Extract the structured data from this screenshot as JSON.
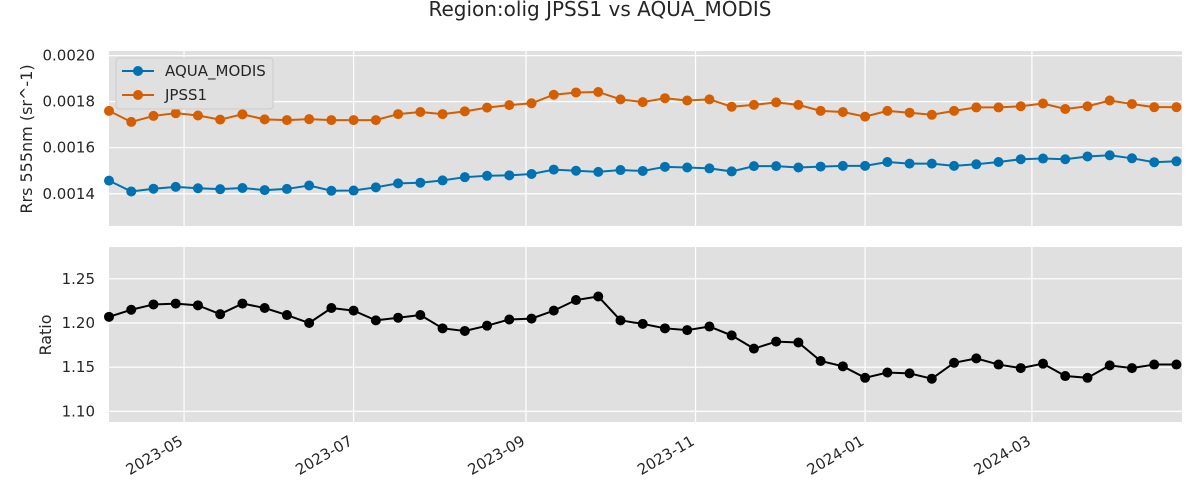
{
  "title": "Region:olig JPSS1 vs AQUA_MODIS",
  "chart_data": [
    {
      "type": "line",
      "ylabel": "Rrs 555nm (sr^-1)",
      "ylim": [
        0.00126,
        0.00202
      ],
      "yticks": [
        0.0014,
        0.0016,
        0.0018,
        0.002
      ],
      "ytick_labels": [
        "0.0014",
        "0.0016",
        "0.0018",
        "0.0020"
      ],
      "grid": true,
      "legend_position": "top-left",
      "x": [
        "2023-04-04",
        "2023-04-12",
        "2023-04-20",
        "2023-04-28",
        "2023-05-06",
        "2023-05-14",
        "2023-05-22",
        "2023-05-30",
        "2023-06-07",
        "2023-06-15",
        "2023-06-23",
        "2023-07-01",
        "2023-07-09",
        "2023-07-17",
        "2023-07-25",
        "2023-08-02",
        "2023-08-10",
        "2023-08-18",
        "2023-08-26",
        "2023-09-03",
        "2023-09-11",
        "2023-09-19",
        "2023-09-27",
        "2023-10-05",
        "2023-10-13",
        "2023-10-21",
        "2023-10-29",
        "2023-11-06",
        "2023-11-14",
        "2023-11-22",
        "2023-11-30",
        "2023-12-08",
        "2023-12-16",
        "2023-12-24",
        "2024-01-01",
        "2024-01-09",
        "2024-01-17",
        "2024-01-25",
        "2024-02-02",
        "2024-02-10",
        "2024-02-18",
        "2024-02-26",
        "2024-03-05",
        "2024-03-13",
        "2024-03-21",
        "2024-03-29",
        "2024-04-06",
        "2024-04-14",
        "2024-04-22"
      ],
      "series": [
        {
          "name": "AQUA_MODIS",
          "color": "#0072b2",
          "values": [
            0.001457,
            0.00141,
            0.001422,
            0.00143,
            0.001424,
            0.00142,
            0.001425,
            0.001416,
            0.001421,
            0.001436,
            0.001413,
            0.001414,
            0.001428,
            0.001445,
            0.001448,
            0.001458,
            0.001472,
            0.001478,
            0.00148,
            0.001486,
            0.001505,
            0.0015,
            0.001495,
            0.001503,
            0.001499,
            0.001517,
            0.001514,
            0.00151,
            0.001497,
            0.00152,
            0.00152,
            0.001514,
            0.001518,
            0.001521,
            0.001521,
            0.001538,
            0.001531,
            0.001531,
            0.001521,
            0.001528,
            0.001538,
            0.00155,
            0.001553,
            0.00155,
            0.001562,
            0.001567,
            0.001554,
            0.001537,
            0.001541
          ]
        },
        {
          "name": "JPSS1",
          "color": "#d55e00",
          "values": [
            0.00176,
            0.001712,
            0.001738,
            0.00175,
            0.00174,
            0.001722,
            0.001745,
            0.001723,
            0.00172,
            0.001724,
            0.00172,
            0.00172,
            0.00172,
            0.001746,
            0.001755,
            0.001746,
            0.001758,
            0.001774,
            0.001785,
            0.001793,
            0.00183,
            0.00184,
            0.001842,
            0.00181,
            0.001798,
            0.001815,
            0.001805,
            0.00181,
            0.001778,
            0.001786,
            0.001797,
            0.001786,
            0.00176,
            0.001755,
            0.001735,
            0.00176,
            0.001752,
            0.001743,
            0.00176,
            0.001775,
            0.001775,
            0.00178,
            0.001792,
            0.001768,
            0.00178,
            0.001805,
            0.00179,
            0.001776,
            0.001776
          ]
        }
      ]
    },
    {
      "type": "line",
      "ylabel": "Ratio",
      "ylim": [
        1.088,
        1.286
      ],
      "yticks": [
        1.1,
        1.15,
        1.2,
        1.25
      ],
      "ytick_labels": [
        "1.10",
        "1.15",
        "1.20",
        "1.25"
      ],
      "xticks": [
        "2023-05-01",
        "2023-07-01",
        "2023-09-01",
        "2023-11-01",
        "2024-01-01",
        "2024-03-01"
      ],
      "xtick_labels": [
        "2023-05",
        "2023-07",
        "2023-09",
        "2023-11",
        "2024-01",
        "2024-03"
      ],
      "xlim": [
        "2023-04-04",
        "2024-04-24"
      ],
      "grid": true,
      "series": [
        {
          "color": "#000000",
          "values": [
            1.207,
            1.215,
            1.221,
            1.222,
            1.22,
            1.21,
            1.222,
            1.217,
            1.209,
            1.2,
            1.217,
            1.214,
            1.203,
            1.206,
            1.209,
            1.194,
            1.191,
            1.197,
            1.204,
            1.205,
            1.214,
            1.226,
            1.23,
            1.203,
            1.199,
            1.194,
            1.192,
            1.196,
            1.186,
            1.171,
            1.179,
            1.178,
            1.157,
            1.151,
            1.138,
            1.144,
            1.143,
            1.137,
            1.155,
            1.16,
            1.153,
            1.149,
            1.154,
            1.14,
            1.138,
            1.152,
            1.149,
            1.153,
            1.153
          ]
        }
      ]
    }
  ]
}
